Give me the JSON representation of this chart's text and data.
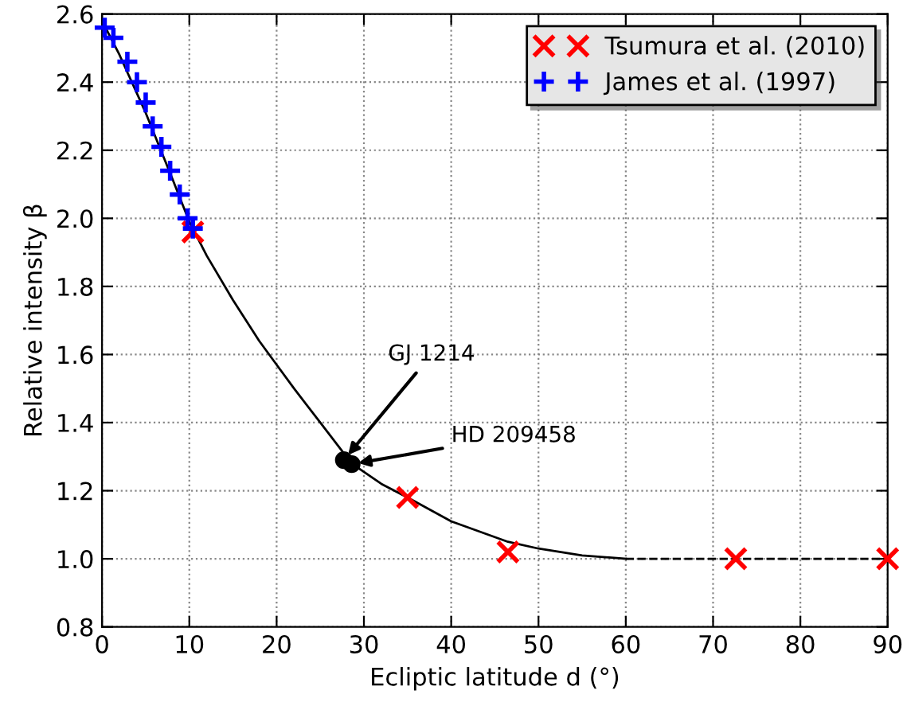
{
  "chart_data": {
    "type": "scatter",
    "xlabel": "Ecliptic latitude d (°)",
    "ylabel": "Relative intensity β",
    "xlim": [
      0,
      90
    ],
    "ylim": [
      0.8,
      2.6
    ],
    "xticks": [
      0,
      10,
      20,
      30,
      40,
      50,
      60,
      70,
      80,
      90
    ],
    "yticks": [
      0.8,
      {
        "value": 1,
        "label": "1.0"
      },
      1.2,
      1.4,
      1.6,
      1.8,
      {
        "value": 2,
        "label": "2.0"
      },
      2.2,
      2.4,
      2.6
    ],
    "grid": true,
    "legend": "top right",
    "series": [
      {
        "type": "line",
        "color": "#000000",
        "line_style": "solid",
        "marker": "none",
        "x": [
          0,
          2,
          5,
          8,
          10,
          12,
          15,
          18,
          20,
          22,
          25,
          28.6,
          32,
          35,
          40,
          46.5,
          50,
          55,
          60
        ],
        "values": [
          2.58,
          2.48,
          2.31,
          2.12,
          1.99,
          1.89,
          1.76,
          1.64,
          1.57,
          1.5,
          1.4,
          1.28,
          1.22,
          1.18,
          1.11,
          1.05,
          1.03,
          1.01,
          1.0
        ]
      },
      {
        "type": "line",
        "color": "#000000",
        "line_style": "dashed",
        "marker": "none",
        "x": [
          60,
          90
        ],
        "values": [
          1.0,
          1.0
        ]
      },
      {
        "name": "Tsumura et al. (2010)",
        "color": "#ff0000",
        "marker": "cross",
        "x": [
          10.4,
          35.0,
          46.5,
          72.6,
          90.0
        ],
        "values": [
          1.96,
          1.18,
          1.02,
          1.0,
          1.0
        ]
      },
      {
        "name": "James et al. (1997)",
        "color": "#0000ff",
        "marker": "plus",
        "x": [
          0.3,
          1.3,
          2.9,
          4.0,
          5.0,
          5.8,
          6.8,
          7.8,
          8.9,
          9.8,
          10.4
        ],
        "values": [
          2.56,
          2.53,
          2.46,
          2.4,
          2.34,
          2.27,
          2.21,
          2.14,
          2.07,
          2.0,
          1.97
        ]
      },
      {
        "color": "#000000",
        "marker": "circle",
        "x": [
          27.7,
          28.6
        ],
        "values": [
          1.29,
          1.278
        ]
      }
    ],
    "annotations": [
      {
        "text": "GJ 1214",
        "x": 27.7,
        "y": 1.29
      },
      {
        "text": "HD 209458",
        "x": 28.6,
        "y": 1.278
      }
    ]
  }
}
